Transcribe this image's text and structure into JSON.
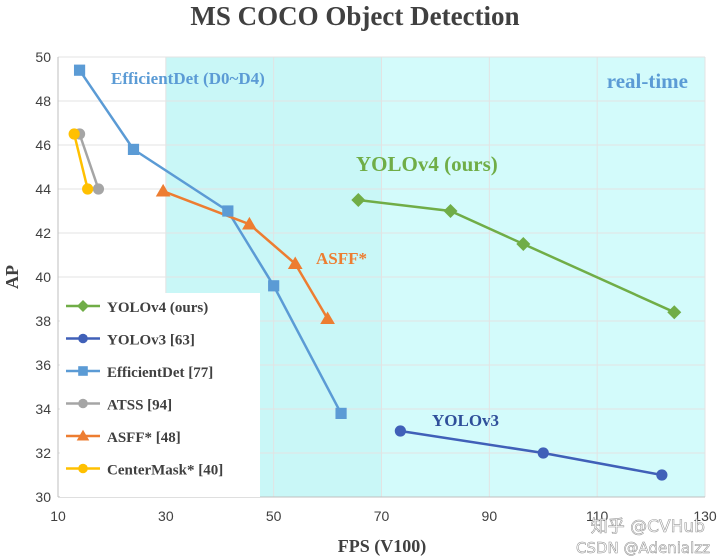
{
  "chart_data": {
    "type": "line",
    "title": "MS COCO Object Detection",
    "xlabel": "FPS (V100)",
    "ylabel": "AP",
    "xlim": [
      10,
      130
    ],
    "ylim": [
      30,
      50
    ],
    "x_ticks": [
      10,
      30,
      50,
      70,
      90,
      110,
      130
    ],
    "y_ticks": [
      30,
      32,
      34,
      36,
      38,
      40,
      42,
      44,
      46,
      48,
      50
    ],
    "realtime_region": {
      "x_start": 30,
      "label": "real-time",
      "color": "#c9f7f7"
    },
    "realtime_region_bright": {
      "x_start": 70
    },
    "legend_position": "bottom-left",
    "series": [
      {
        "name": "YOLOv4 (ours)",
        "marker": "diamond",
        "color": "#70ad47",
        "x": [
          65.7,
          82.8,
          96.3,
          124.3
        ],
        "y": [
          43.5,
          43.0,
          41.5,
          38.4
        ],
        "annotation": "YOLOv4 (ours)"
      },
      {
        "name": "YOLOv3 [63]",
        "marker": "circle",
        "color": "#4060b8",
        "x": [
          73.5,
          100.0,
          122.0
        ],
        "y": [
          33.0,
          32.0,
          31.0
        ],
        "annotation": "YOLOv3"
      },
      {
        "name": "EfficientDet [77]",
        "marker": "square",
        "color": "#5b9bd5",
        "x": [
          14.0,
          24.0,
          41.5,
          50.0,
          62.5
        ],
        "y": [
          49.4,
          45.8,
          43.0,
          39.6,
          33.8
        ],
        "annotation": "EfficientDet (D0~D4)"
      },
      {
        "name": "ATSS [94]",
        "marker": "circle",
        "color": "#a5a5a5",
        "x": [
          14.0,
          17.5
        ],
        "y": [
          46.5,
          44.0
        ]
      },
      {
        "name": "ASFF* [48]",
        "marker": "triangle",
        "color": "#ed7d31",
        "x": [
          29.5,
          45.5,
          54.0,
          60.0
        ],
        "y": [
          43.9,
          42.4,
          40.6,
          38.1
        ],
        "annotation": "ASFF*"
      },
      {
        "name": "CenterMask* [40]",
        "marker": "circle",
        "color": "#ffc000",
        "x": [
          13.0,
          15.5
        ],
        "y": [
          46.5,
          44.0
        ]
      }
    ],
    "watermarks": [
      "知乎 @CVHub",
      "CSDN @Adenialzz"
    ]
  }
}
